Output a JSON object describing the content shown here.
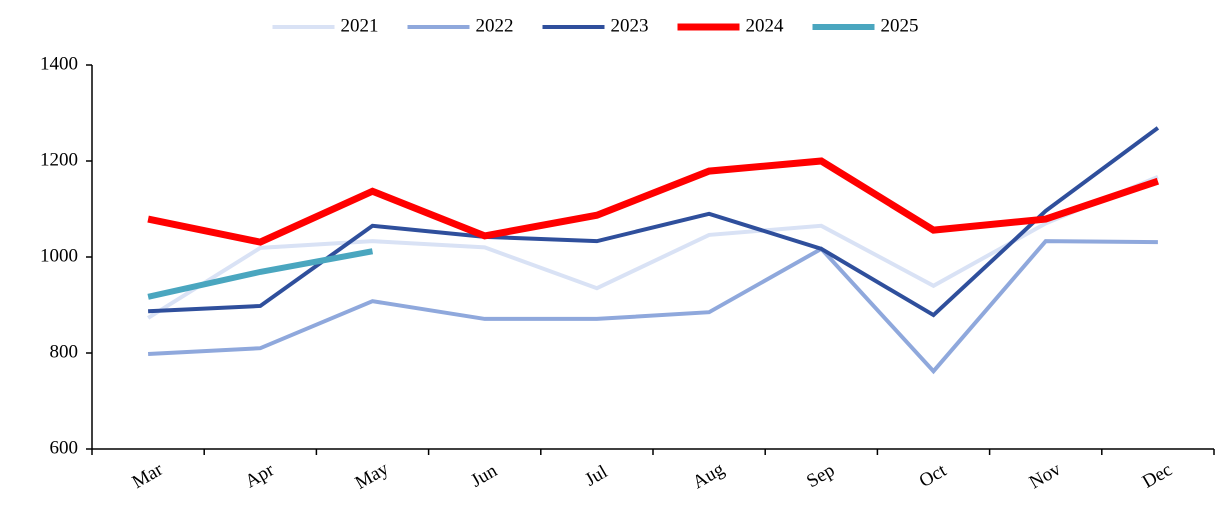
{
  "chart_data": {
    "type": "line",
    "categories": [
      "Mar",
      "Apr",
      "May",
      "Jun",
      "Jul",
      "Aug",
      "Sep",
      "Oct",
      "Nov",
      "Dec"
    ],
    "series": [
      {
        "name": "2021",
        "color": "#d9e2f5",
        "width": 4,
        "values": [
          873,
          1019,
          1033,
          1020,
          935,
          1046,
          1065,
          940,
          1070,
          1167
        ]
      },
      {
        "name": "2022",
        "color": "#8fa8dc",
        "width": 4,
        "values": [
          798,
          810,
          908,
          871,
          871,
          885,
          1017,
          762,
          1033,
          1031
        ]
      },
      {
        "name": "2023",
        "color": "#2f4f9c",
        "width": 4,
        "values": [
          887,
          898,
          1065,
          1042,
          1033,
          1090,
          1017,
          879,
          1096,
          1269
        ]
      },
      {
        "name": "2024",
        "color": "#ff0000",
        "width": 7,
        "values": [
          1079,
          1031,
          1137,
          1044,
          1087,
          1179,
          1200,
          1056,
          1079,
          1158
        ]
      },
      {
        "name": "2025",
        "color": "#4aa6bf",
        "width": 6,
        "values": [
          917,
          969,
          1012,
          null,
          null,
          null,
          null,
          null,
          null,
          null
        ]
      }
    ],
    "ylim": [
      600,
      1400
    ],
    "yticks": [
      600,
      800,
      1000,
      1200,
      1400
    ],
    "grid": false,
    "legend": "top"
  }
}
